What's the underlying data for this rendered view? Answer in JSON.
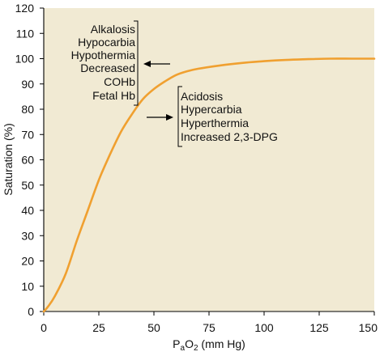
{
  "chart_data": {
    "type": "line",
    "title": "",
    "xlabel": {
      "main": "P",
      "sub1": "a",
      "mid": "O",
      "sub2": "2",
      "rest": " (mm Hg)"
    },
    "ylabel": "Saturation (%)",
    "xlim": [
      0,
      150
    ],
    "ylim": [
      0,
      120
    ],
    "xticks": [
      0,
      25,
      50,
      75,
      100,
      125,
      150
    ],
    "yticks": [
      0,
      10,
      20,
      30,
      40,
      50,
      60,
      70,
      80,
      90,
      100,
      110,
      120
    ],
    "grid": false,
    "series": [
      {
        "color": "#f0a030",
        "x": [
          0,
          2,
          5,
          10,
          15,
          20,
          25,
          30,
          35,
          40,
          45,
          50,
          55,
          60,
          65,
          70,
          80,
          90,
          100,
          110,
          120,
          130,
          140,
          150
        ],
        "y": [
          0,
          2,
          6,
          15,
          28,
          40,
          52,
          62,
          71,
          78,
          84,
          88,
          91,
          93.5,
          95,
          96,
          97.3,
          98.3,
          99,
          99.5,
          99.8,
          100,
          100,
          100
        ]
      }
    ],
    "annotations": {
      "left_shift": [
        "Alkalosis",
        "Hypocarbia",
        "Hypothermia",
        "Decreased",
        "COHb",
        "Fetal Hb"
      ],
      "right_shift": [
        "Acidosis",
        "Hypercarbia",
        "Hyperthermia",
        "Increased 2,3-DPG"
      ]
    }
  }
}
